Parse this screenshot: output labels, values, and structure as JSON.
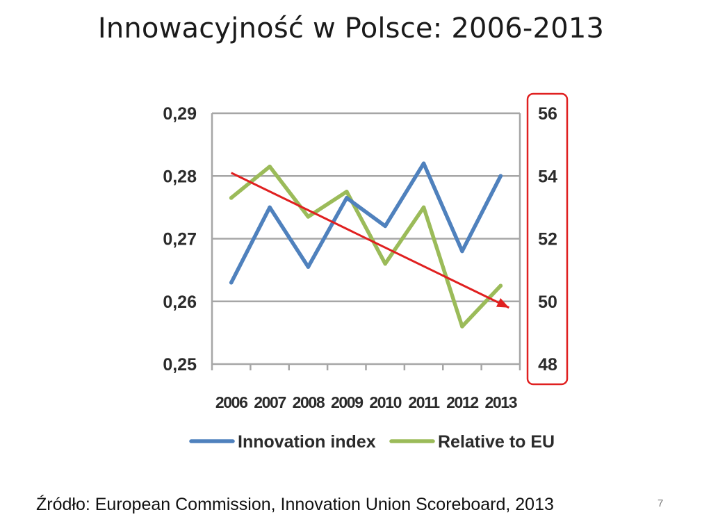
{
  "slide": {
    "title": "Innowacyjność w Polsce: 2006-2013",
    "source": "Źródło: European Commission, Innovation Union Scoreboard, 2013",
    "page_number": "7"
  },
  "colors": {
    "innovation_index": "#4f81bd",
    "relative_to_eu": "#9bbb59",
    "grid": "#a6a6a6",
    "trend_arrow": "#e02020",
    "highlight_box": "#e02020"
  },
  "chart_data": {
    "type": "line",
    "categories": [
      "2006",
      "2007",
      "2008",
      "2009",
      "2010",
      "2011",
      "2012",
      "2013"
    ],
    "series": [
      {
        "name": "Innovation index",
        "axis": "left",
        "values": [
          0.263,
          0.275,
          0.2655,
          0.2765,
          0.272,
          0.282,
          0.268,
          0.28
        ]
      },
      {
        "name": "Relative to EU",
        "axis": "right",
        "values": [
          53.3,
          54.3,
          52.7,
          53.5,
          51.2,
          53.0,
          49.2,
          50.5
        ]
      }
    ],
    "y_left": {
      "range": [
        0.25,
        0.29
      ],
      "ticks": [
        "0,25",
        "0,26",
        "0,27",
        "0,28",
        "0,29"
      ]
    },
    "y_right": {
      "range": [
        48,
        56
      ],
      "ticks": [
        "48",
        "50",
        "52",
        "54",
        "56"
      ]
    },
    "grid": true,
    "legend_position": "bottom",
    "annotations": [
      {
        "type": "trend-arrow",
        "from": {
          "category": "2006",
          "value": 0.2805
        },
        "to": {
          "category": "2013",
          "value": 0.259
        }
      },
      {
        "type": "highlight-box",
        "target": "right-axis"
      }
    ]
  }
}
